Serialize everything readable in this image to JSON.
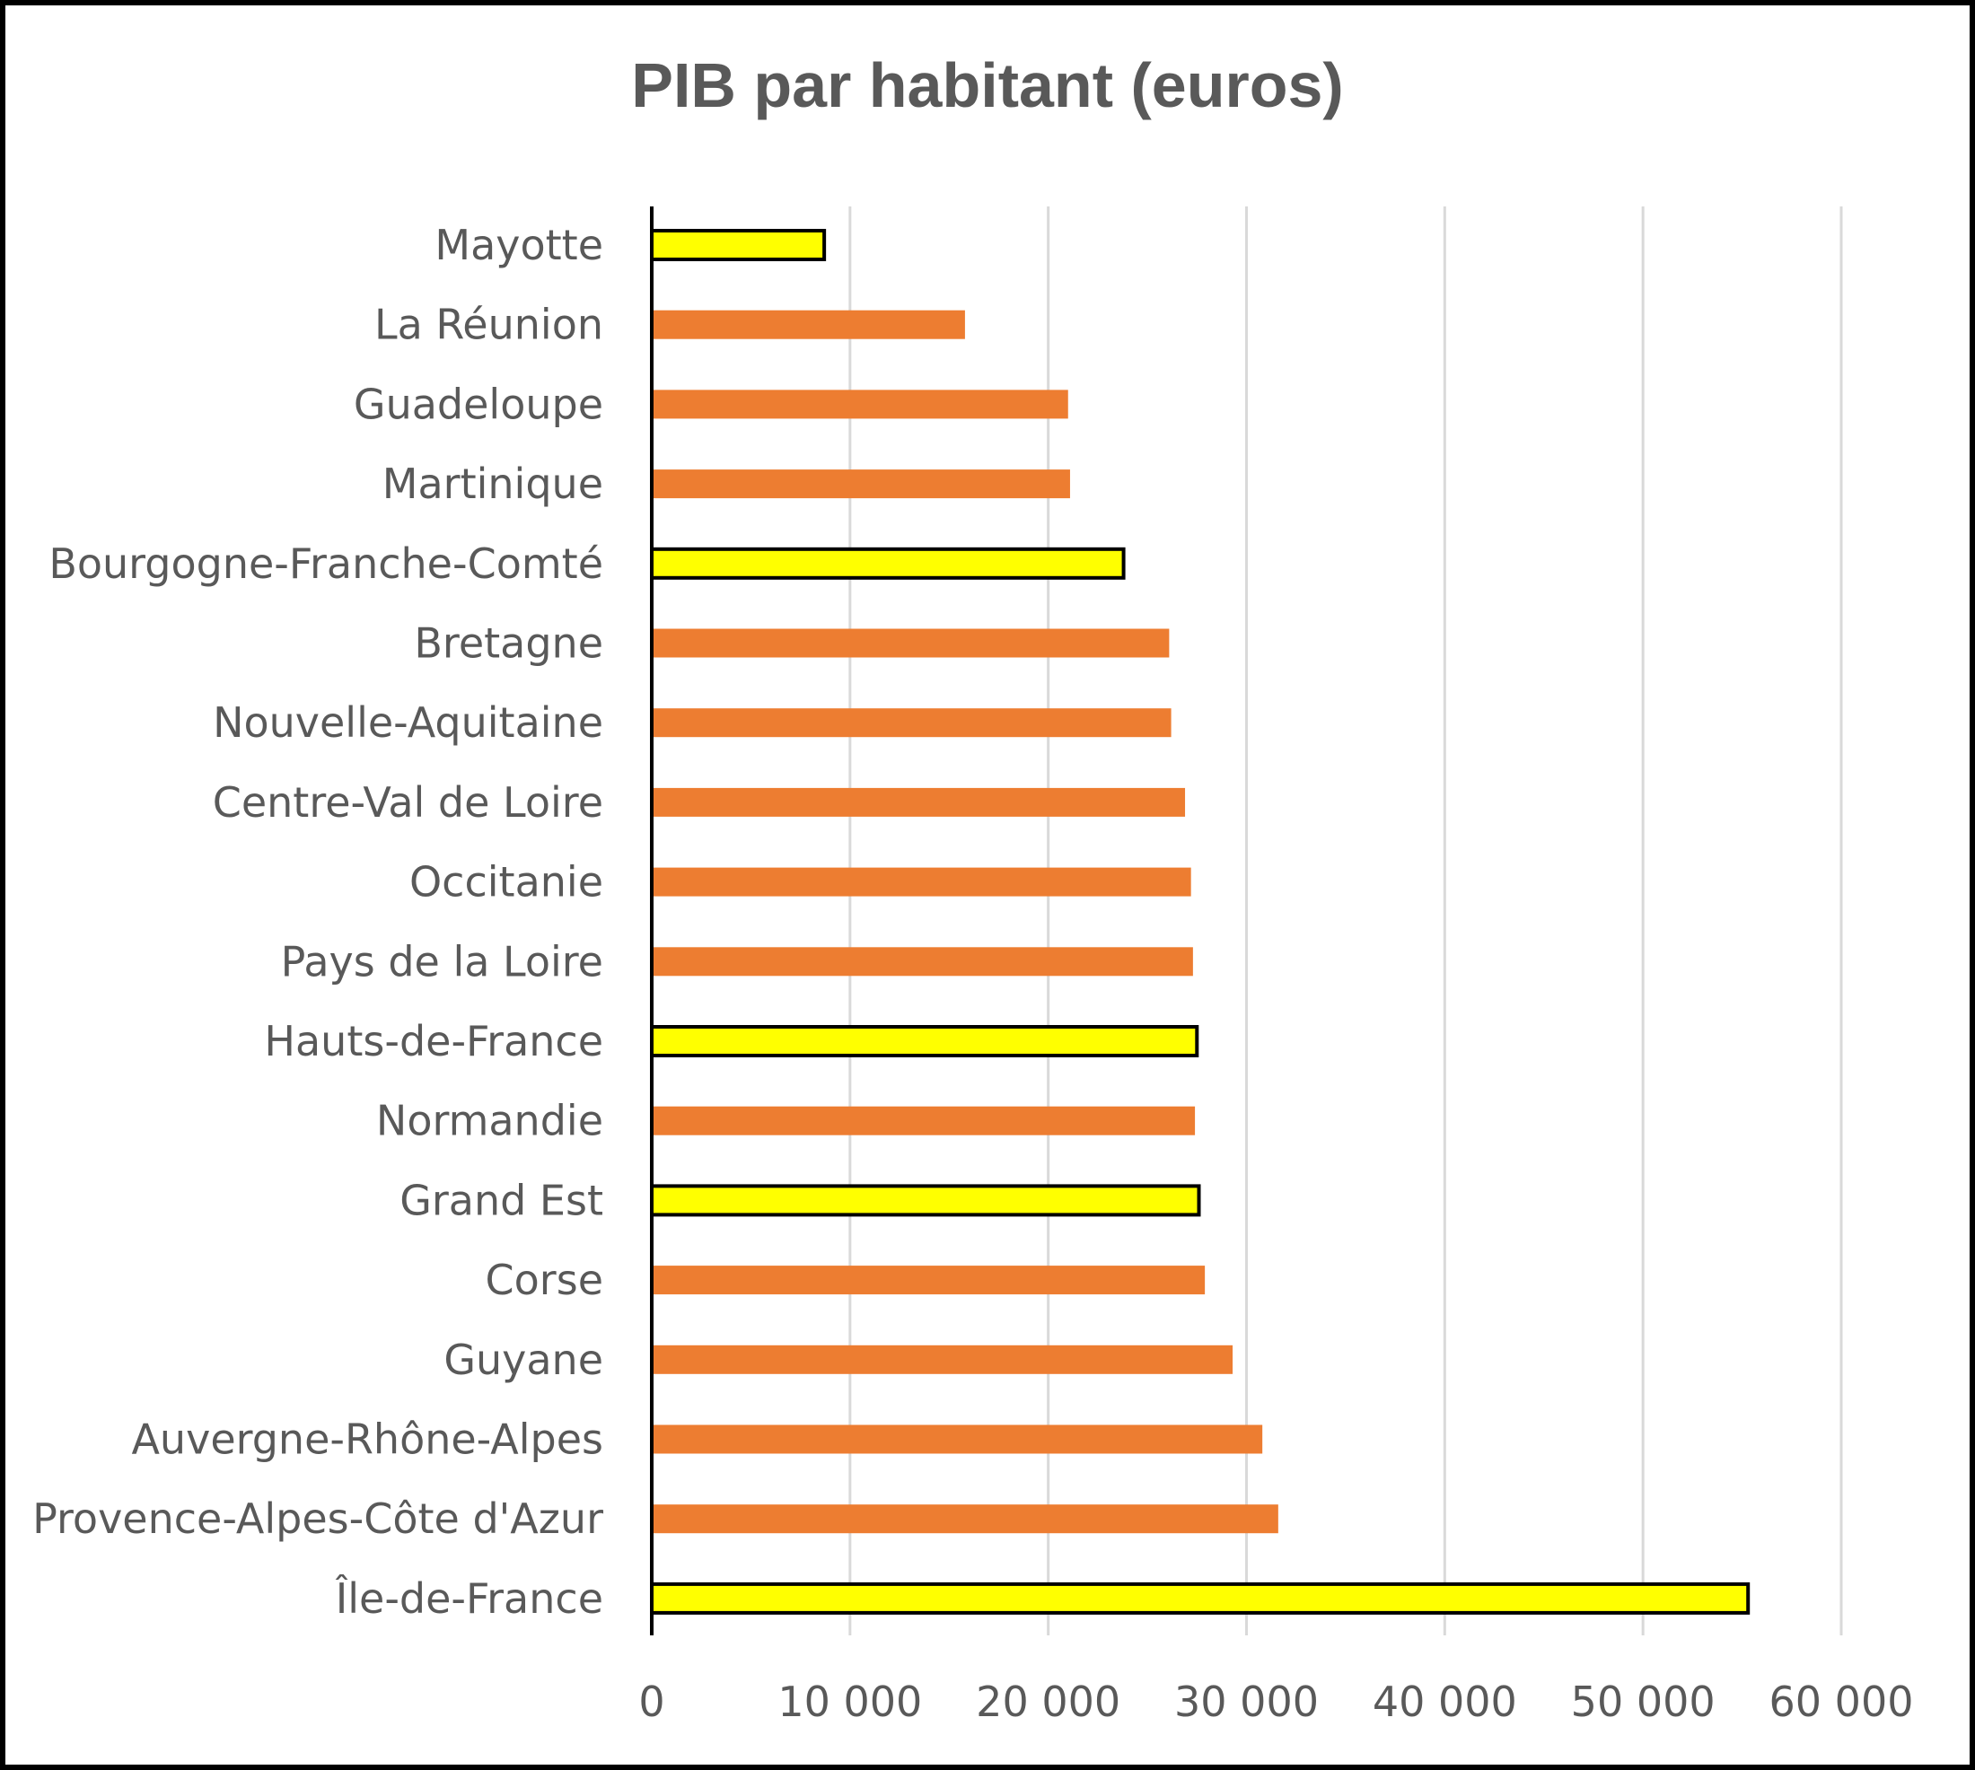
{
  "chart_data": {
    "type": "bar",
    "orientation": "horizontal",
    "title": "PIB par habitant (euros)",
    "xlabel": "",
    "ylabel": "",
    "xlim": [
      0,
      60000
    ],
    "x_ticks": [
      0,
      10000,
      20000,
      30000,
      40000,
      50000,
      60000
    ],
    "x_tick_labels": [
      "0",
      "10 000",
      "20 000",
      "30 000",
      "40 000",
      "50 000",
      "60 000"
    ],
    "grid": "vertical",
    "legend": "none",
    "categories": [
      "Mayotte",
      "La Réunion",
      "Guadeloupe",
      "Martinique",
      "Bourgogne-Franche-Comté",
      "Bretagne",
      "Nouvelle-Aquitaine",
      "Centre-Val de Loire",
      "Occitanie",
      "Pays de la Loire",
      "Hauts-de-France",
      "Normandie",
      "Grand Est",
      "Corse",
      "Guyane",
      "Auvergne-Rhône-Alpes",
      "Provence-Alpes-Côte d'Azur",
      "Île-de-France"
    ],
    "values": [
      8700,
      15800,
      21000,
      21100,
      23800,
      26100,
      26200,
      26900,
      27200,
      27300,
      27500,
      27400,
      27600,
      27900,
      29300,
      30800,
      31600,
      55300
    ],
    "highlighted": [
      true,
      false,
      false,
      false,
      true,
      false,
      false,
      false,
      false,
      false,
      true,
      false,
      true,
      false,
      false,
      false,
      false,
      true
    ],
    "colors": {
      "default_bar": "#ED7D31",
      "highlight_bar": "#FFFF00",
      "highlight_outline": "#000000",
      "gridline": "#D9D9D9",
      "axis": "#000000",
      "text": "#595959"
    }
  }
}
